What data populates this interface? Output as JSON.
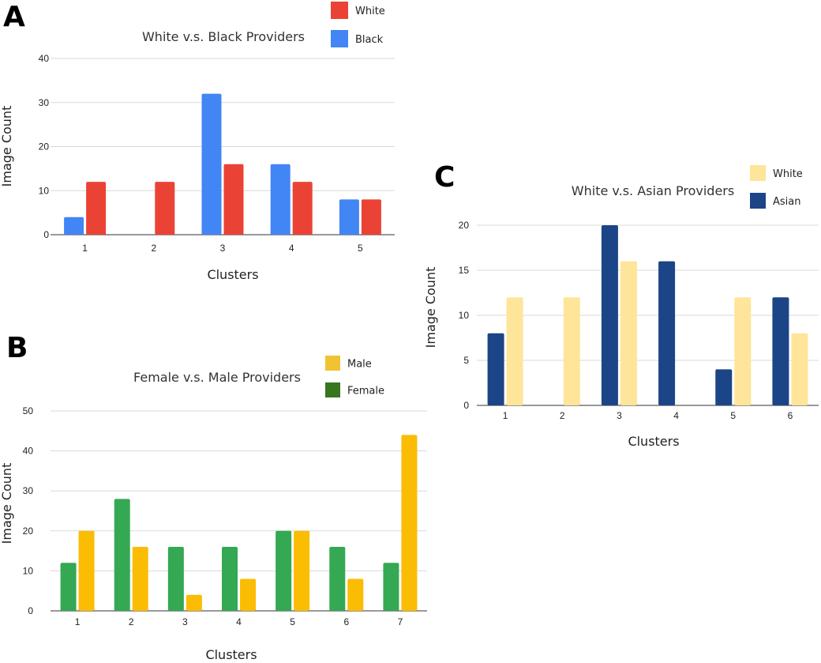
{
  "chart_data": [
    {
      "panel": "A",
      "type": "bar",
      "title": "White v.s. Black Providers",
      "xlabel": "Clusters",
      "ylabel": "Image Count",
      "categories": [
        "1",
        "2",
        "3",
        "4",
        "5"
      ],
      "ylim": [
        0,
        40
      ],
      "yticks": [
        0,
        10,
        20,
        30,
        40
      ],
      "grid": true,
      "legend_position": "top-right",
      "series": [
        {
          "name": "Black",
          "color": "#4285f4",
          "values": [
            4,
            0,
            32,
            16,
            8
          ]
        },
        {
          "name": "White",
          "color": "#ea4335",
          "values": [
            12,
            12,
            16,
            12,
            8
          ]
        }
      ],
      "legend_order": [
        "White",
        "Black"
      ]
    },
    {
      "panel": "B",
      "type": "bar",
      "title": "Female v.s. Male Providers",
      "xlabel": "Clusters",
      "ylabel": "Image Count",
      "categories": [
        "1",
        "2",
        "3",
        "4",
        "5",
        "6",
        "7"
      ],
      "ylim": [
        0,
        50
      ],
      "yticks": [
        0,
        10,
        20,
        30,
        40,
        50
      ],
      "grid": true,
      "legend_position": "top-right",
      "series": [
        {
          "name": "Female",
          "color": "#34a853",
          "legend_color": "#38761d",
          "values": [
            12,
            28,
            16,
            16,
            20,
            16,
            12
          ]
        },
        {
          "name": "Male",
          "color": "#fbbc04",
          "legend_color": "#f1c232",
          "values": [
            20,
            16,
            4,
            8,
            20,
            8,
            44
          ]
        }
      ],
      "legend_order": [
        "Male",
        "Female"
      ]
    },
    {
      "panel": "C",
      "type": "bar",
      "title": "White v.s. Asian Providers",
      "xlabel": "Clusters",
      "ylabel": "Image Count",
      "categories": [
        "1",
        "2",
        "3",
        "4",
        "5",
        "6"
      ],
      "ylim": [
        0,
        20
      ],
      "yticks": [
        0,
        5,
        10,
        15,
        20
      ],
      "grid": true,
      "legend_position": "top-right",
      "series": [
        {
          "name": "Asian",
          "color": "#1c4587",
          "values": [
            8,
            0,
            20,
            16,
            4,
            12
          ]
        },
        {
          "name": "White",
          "color": "#ffe599",
          "values": [
            12,
            12,
            16,
            0,
            12,
            8
          ]
        }
      ],
      "legend_order": [
        "White",
        "Asian"
      ]
    }
  ]
}
